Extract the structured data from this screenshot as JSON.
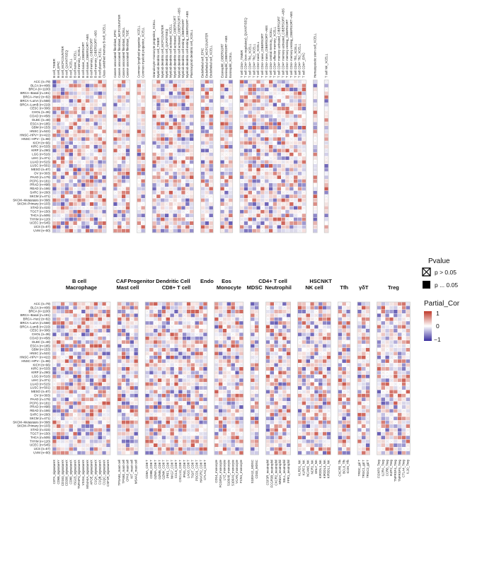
{
  "chart_data": {
    "type": "heatmap",
    "title": "",
    "cancers": [
      "ACC (n=79)",
      "BLCA (n=408)",
      "BRCA (n=1100)",
      "BRCA−Basal (n=191)",
      "BRCA−Her2 (n=82)",
      "BRCA−LumA (n=568)",
      "BRCA−LumB (n=219)",
      "CESC (n=306)",
      "CHOL (n=36)",
      "COAD (n=458)",
      "DLBC (n=48)",
      "ESCA (n=185)",
      "GBM (n=153)",
      "HNSC (n=522)",
      "HNSC−HPV+ (n=422)",
      "HNSC−HPV− (n=98)",
      "KICH (n=66)",
      "KIRC (n=533)",
      "KIRP (n=290)",
      "LGG (n=516)",
      "LIHC (n=371)",
      "LUAD (n=515)",
      "LUSC (n=501)",
      "MESO (n=87)",
      "OV (n=303)",
      "PAAD (n=179)",
      "PCPG (n=181)",
      "PRAD (n=498)",
      "READ (n=166)",
      "SARC (n=260)",
      "SKCM (n=471)",
      "SKCM−Metastasis (n=368)",
      "SKCM−Primary (n=103)",
      "STAD (n=415)",
      "TGCT (n=150)",
      "THCA (n=509)",
      "THYM (n=120)",
      "UCEC (n=545)",
      "UCS (n=57)",
      "UVM (n=80)"
    ],
    "panels": [
      {
        "groups": [
          {
            "name": "B cell",
            "columns": [
              "B cell_TIMER",
              "B cell_EPIC",
              "B cell_MCPCOUNTER",
              "B cell_QUANTISEQ",
              "B cell_XCELL",
              "B cell naive_XCELL",
              "B cell memory_XCELL",
              "B cell naive_CIBERSORT",
              "B cell naive_CIBERSORT−ABS",
              "B cell memory_CIBERSORT",
              "B cell memory_CIBERSORT−ABS",
              "B cell plasma_XCELL",
              "Class−switched memory B cell_XCELL"
            ]
          },
          {
            "name": "CAF",
            "columns": [
              "Cancer associated fibroblast_EPIC",
              "Cancer associated fibroblast_MCPCOUNTER",
              "Cancer associated fibroblast_XCELL",
              "Cancer associated fibroblast_TIDE"
            ]
          },
          {
            "name": "Progenitor",
            "columns": [
              "Common lymphoid progenitor_XCELL",
              "Common myeloid progenitor_XCELL"
            ]
          },
          {
            "name": "Dendritic Cell",
            "columns": [
              "Granulocyte−monocyte progenitor_XCELL",
              "Myeloid dendritic cell_TIMER",
              "Myeloid dendritic cell_MCPCOUNTER",
              "Myeloid dendritic cell_QUANTISEQ",
              "Myeloid dendritic cell activated_XCELL",
              "Myeloid dendritic cell activated_CIBERSORT",
              "Myeloid dendritic cell activated_CIBERSORT−ABS",
              "Myeloid dendritic cell resting_CIBERSORT",
              "Myeloid dendritic cell resting_CIBERSORT−ABS",
              "Plasmacytoid dendritic cell_XCELL"
            ]
          },
          {
            "name": "Endo",
            "columns": [
              "Endothelial cell_EPIC",
              "Endothelial cell_MCPCOUNTER",
              "Endothelial cell_XCELL"
            ]
          },
          {
            "name": "Eos",
            "columns": [
              "Eosinophil_CIBERSORT",
              "Eosinophil_CIBERSORT−ABS",
              "Eosinophil_XCELL"
            ]
          },
          {
            "name": "CD4+ T cell",
            "columns": [
              "T cell CD4+_TIMER",
              "T cell CD4+ (non−regulatory)_QUANTISEQ",
              "T cell CD4+ Th1_XCELL",
              "T cell CD4+ Th2_XCELL",
              "T cell CD4+ naive_XCELL",
              "T cell CD4+ naive_CIBERSORT",
              "T cell CD4+ naive_CIBERSORT−ABS",
              "T cell CD4+ central memory_XCELL",
              "T cell CD4+ effector memory_XCELL",
              "T cell CD4+ memory activated_CIBERSORT",
              "T cell CD4+ memory activated_CIBERSORT−ABS",
              "T cell CD4+ memory resting_CIBERSORT",
              "T cell CD4+ memory resting_CIBERSORT−ABS",
              "T cell CD4+ Th1_XCELL",
              "T cell CD4+ Th2_XCELL",
              "T cell CD4+_EPIC"
            ]
          },
          {
            "name": "HSC",
            "columns": [
              "Hematopoietic stem cell_XCELL"
            ]
          },
          {
            "name": "NKT",
            "columns": [
              "T cell NK_XCELL"
            ]
          }
        ]
      },
      {
        "groups": [
          {
            "name": "Macrophage",
            "columns": [
              "CIITA_signatureX",
              "CD68_signatureY",
              "CD163_signatureX",
              "CD206_signatureX",
              "CD86_signatureX",
              "ISG15_signatureX",
              "TNFAIP3_signatureX",
              "VSIG4_signatureX",
              "MS4A4A_signatureX",
              "APOE_signatureX",
              "C1QA_signatureX",
              "C1QB_signatureX",
              "C1QC_signatureX",
              "CSF1R_signatureX"
            ]
          },
          {
            "name": "Mast cell",
            "columns": [
              "TPSAB1_mast cell",
              "TPSB2_mast cell",
              "CPA3_mast cell",
              "KIT_mast cell",
              "MS4A2_mast cell"
            ]
          },
          {
            "name": "CD8+ T cell",
            "columns": [
              "CD8A_CD8 T",
              "CD8B_CD8 T",
              "GZMA_CD8 T",
              "GZMB_CD8 T",
              "GZMK_CD8 T",
              "PRF1_CD8 T",
              "NKG7_CD8 T",
              "CCL5_CD8 T",
              "CXCL13_CD8 T",
              "IFNG_CD8 T",
              "LAG3_CD8 T",
              "TIGIT_CD8 T",
              "PDCD1_CD8 T",
              "HAVCR2_CD8 T",
              "CTLA4_CD8 T"
            ]
          },
          {
            "name": "Monocyte",
            "columns": [
              "CD14_monocyte",
              "FCGR3A_monocyte",
              "LYZ_monocyte",
              "S100A8_monocyte",
              "S100A9_monocyte",
              "VCAN_monocyte",
              "FCN1_monocyte"
            ]
          },
          {
            "name": "MDSC",
            "columns": [
              "S100A12_MDSC",
              "CD33_MDSC"
            ]
          },
          {
            "name": "Neutrophil",
            "columns": [
              "CSF3R_neutrophil",
              "FCGR3B_neutrophil",
              "CXCR2_neutrophil",
              "MNDA_neutrophil",
              "SELL_neutrophil",
              "FPR1_neutrophil"
            ]
          },
          {
            "name": "NK cell",
            "columns": [
              "KLRD1_NK",
              "KLRF1_NK",
              "NCAM1_NK",
              "NCR1_NK",
              "GNLY_NK",
              "KIR2DL1_NK",
              "KIR2DL3_NK",
              "KIR3DL1_NK"
            ]
          },
          {
            "name": "Tfh",
            "columns": [
              "CXCR5_Tfh",
              "BCL6_Tfh",
              "ICOS_Tfh"
            ]
          },
          {
            "name": "γδT",
            "columns": [
              "TRDC_gd T",
              "TRGC1_gd T",
              "TRGC2_gd T"
            ]
          },
          {
            "name": "Treg",
            "columns": [
              "FOXP3_Treg",
              "IL2RA_Treg",
              "CCR8_Treg",
              "IKZF2_Treg",
              "TNFRSF4_Treg",
              "TNFRSF9_Treg",
              "CTLA4_Treg",
              "IL10_Treg"
            ]
          }
        ]
      }
    ],
    "legend": {
      "pvalue_title": "Pvalue",
      "pvalue_ns": "p > 0.05",
      "pvalue_sig": "p ... 0.05",
      "cor_title": "Partial_Cor",
      "cor_max": "1",
      "cor_mid": "0",
      "cor_min": "−1",
      "scale": [
        -1,
        0,
        1
      ]
    },
    "colors": {
      "positive": "#c0392b",
      "neutral": "#ffffff",
      "negative": "#3a2e9e",
      "cell_border": "#ffffff",
      "group_border": "#c8c8c8"
    }
  }
}
